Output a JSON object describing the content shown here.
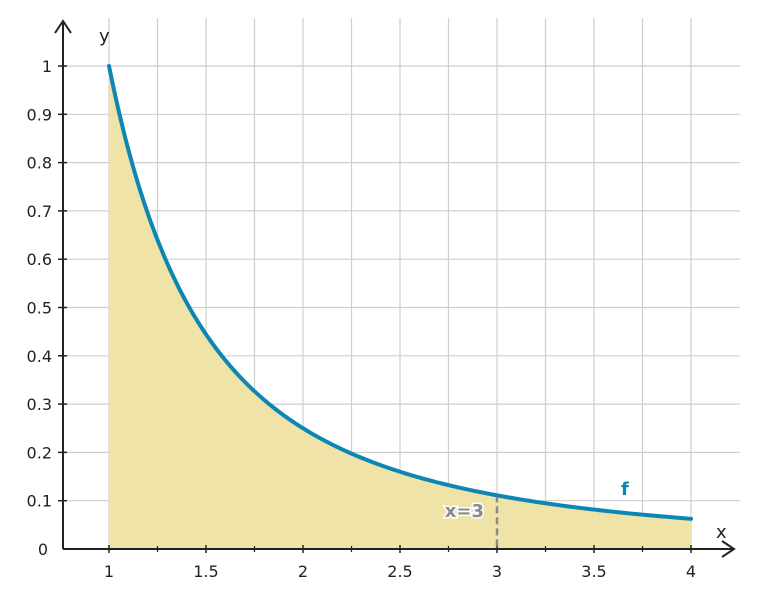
{
  "chart_data": {
    "type": "area",
    "function": "y = 1/x^2",
    "x": [
      1,
      1.25,
      1.5,
      1.75,
      2,
      2.25,
      2.5,
      2.75,
      3,
      3.25,
      3.5,
      3.75,
      4
    ],
    "y": [
      1,
      0.64,
      0.444,
      0.327,
      0.25,
      0.198,
      0.16,
      0.132,
      0.111,
      0.095,
      0.082,
      0.071,
      0.0625
    ],
    "xlabel": "x",
    "ylabel": "y",
    "xlim": [
      0.75,
      4.15
    ],
    "ylim": [
      0,
      1.08
    ],
    "x_ticks": [
      "1",
      "1.5",
      "2",
      "2.5",
      "3",
      "3.5",
      "4"
    ],
    "y_ticks": [
      "0",
      "0.1",
      "0.2",
      "0.3",
      "0.4",
      "0.5",
      "0.6",
      "0.7",
      "0.8",
      "0.9",
      "1"
    ],
    "grid": true,
    "fill_range": [
      1,
      4
    ],
    "series": [
      {
        "name": "f",
        "color": "#0e86b4"
      }
    ],
    "annotations": [
      {
        "text": "x=3",
        "x": 3
      }
    ],
    "colors": {
      "curve": "#0e86b4",
      "fill": "#efe3a7",
      "grid": "#cfcfcf",
      "axis": "#222222",
      "marker": "#8a8a8a"
    }
  }
}
